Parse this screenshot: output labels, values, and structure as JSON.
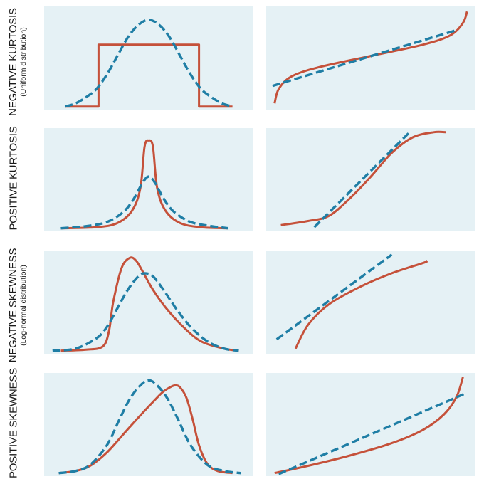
{
  "colors": {
    "panel_bg": "#e5f1f5",
    "sample": "#c5513a",
    "normal": "#1f7ea5",
    "text": "#1b1b1b"
  },
  "rows": [
    {
      "title": "NEGATIVE KURTOSIS",
      "subtitle": "(Uniform distribution)"
    },
    {
      "title": "POSITIVE KURTOSIS",
      "subtitle": ""
    },
    {
      "title": "NEGATIVE SKEWNESS",
      "subtitle": "(Log-normal distribution)"
    },
    {
      "title": "POSITIVE SKEWNESS",
      "subtitle": ""
    }
  ],
  "chart_data": [
    {
      "type": "line",
      "panel": "negative-kurtosis-density",
      "title": "",
      "xlabel": "",
      "ylabel": "",
      "grid": false,
      "xlim": [
        0,
        1
      ],
      "ylim": [
        0,
        1
      ],
      "series": [
        {
          "style": "solid",
          "color": "#c5513a",
          "x": [
            0.1,
            0.26,
            0.26,
            0.74,
            0.74,
            0.9
          ],
          "y": [
            0.03,
            0.03,
            0.63,
            0.63,
            0.03,
            0.03
          ]
        },
        {
          "style": "dashed",
          "color": "#1f7ea5",
          "x": [
            0.1,
            0.15,
            0.2,
            0.25,
            0.3,
            0.35,
            0.4,
            0.45,
            0.5,
            0.55,
            0.6,
            0.65,
            0.7,
            0.75,
            0.8,
            0.85,
            0.9
          ],
          "y": [
            0.03,
            0.06,
            0.12,
            0.2,
            0.34,
            0.52,
            0.7,
            0.82,
            0.87,
            0.82,
            0.7,
            0.52,
            0.34,
            0.2,
            0.12,
            0.06,
            0.03
          ]
        }
      ]
    },
    {
      "type": "line",
      "panel": "negative-kurtosis-qq",
      "title": "",
      "xlabel": "",
      "ylabel": "",
      "grid": false,
      "xlim": [
        0,
        1
      ],
      "ylim": [
        0,
        1
      ],
      "series": [
        {
          "style": "solid",
          "color": "#c5513a",
          "x": [
            0.04,
            0.06,
            0.12,
            0.25,
            0.5,
            0.75,
            0.88,
            0.94,
            0.96
          ],
          "y": [
            0.06,
            0.2,
            0.32,
            0.41,
            0.52,
            0.63,
            0.72,
            0.84,
            0.95
          ]
        },
        {
          "style": "dashed",
          "color": "#1f7ea5",
          "x": [
            0.03,
            0.91
          ],
          "y": [
            0.23,
            0.77
          ]
        }
      ]
    },
    {
      "type": "line",
      "panel": "positive-kurtosis-density",
      "title": "",
      "xlabel": "",
      "ylabel": "",
      "grid": false,
      "xlim": [
        0,
        1
      ],
      "ylim": [
        0,
        1
      ],
      "series": [
        {
          "style": "solid",
          "color": "#c5513a",
          "x": [
            0.08,
            0.25,
            0.35,
            0.42,
            0.46,
            0.48,
            0.5,
            0.52,
            0.54,
            0.58,
            0.65,
            0.75,
            0.88
          ],
          "y": [
            0.03,
            0.04,
            0.08,
            0.2,
            0.42,
            0.82,
            0.88,
            0.82,
            0.42,
            0.2,
            0.08,
            0.04,
            0.03
          ]
        },
        {
          "style": "dashed",
          "color": "#1f7ea5",
          "x": [
            0.08,
            0.2,
            0.3,
            0.38,
            0.43,
            0.47,
            0.5,
            0.53,
            0.57,
            0.62,
            0.7,
            0.8,
            0.88
          ],
          "y": [
            0.03,
            0.05,
            0.09,
            0.19,
            0.32,
            0.47,
            0.53,
            0.47,
            0.32,
            0.19,
            0.09,
            0.05,
            0.03
          ]
        }
      ]
    },
    {
      "type": "line",
      "panel": "positive-kurtosis-qq",
      "title": "",
      "xlabel": "",
      "ylabel": "",
      "grid": false,
      "xlim": [
        0,
        1
      ],
      "ylim": [
        0,
        1
      ],
      "series": [
        {
          "style": "solid",
          "color": "#c5513a",
          "x": [
            0.07,
            0.2,
            0.3,
            0.4,
            0.5,
            0.6,
            0.7,
            0.8,
            0.86
          ],
          "y": [
            0.06,
            0.1,
            0.15,
            0.32,
            0.53,
            0.76,
            0.91,
            0.96,
            0.96
          ]
        },
        {
          "style": "dashed",
          "color": "#1f7ea5",
          "x": [
            0.23,
            0.68
          ],
          "y": [
            0.04,
            0.95
          ]
        }
      ]
    },
    {
      "type": "line",
      "panel": "negative-skewness-density",
      "title": "",
      "xlabel": "",
      "ylabel": "",
      "grid": false,
      "xlim": [
        0,
        1
      ],
      "ylim": [
        0,
        1
      ],
      "series": [
        {
          "style": "solid",
          "color": "#c5513a",
          "x": [
            0.08,
            0.2,
            0.28,
            0.31,
            0.33,
            0.37,
            0.41,
            0.44,
            0.47,
            0.52,
            0.58,
            0.66,
            0.75,
            0.86,
            0.93
          ],
          "y": [
            0.03,
            0.04,
            0.07,
            0.22,
            0.5,
            0.83,
            0.93,
            0.9,
            0.8,
            0.62,
            0.45,
            0.27,
            0.12,
            0.05,
            0.03
          ]
        },
        {
          "style": "dashed",
          "color": "#1f7ea5",
          "x": [
            0.04,
            0.15,
            0.25,
            0.3,
            0.35,
            0.4,
            0.45,
            0.48,
            0.52,
            0.57,
            0.63,
            0.7,
            0.78,
            0.86,
            0.93
          ],
          "y": [
            0.03,
            0.05,
            0.15,
            0.26,
            0.44,
            0.62,
            0.75,
            0.78,
            0.75,
            0.62,
            0.44,
            0.26,
            0.12,
            0.05,
            0.03
          ]
        }
      ]
    },
    {
      "type": "line",
      "panel": "negative-skewness-qq",
      "title": "",
      "xlabel": "",
      "ylabel": "",
      "grid": false,
      "xlim": [
        0,
        1
      ],
      "ylim": [
        0,
        1
      ],
      "series": [
        {
          "style": "solid",
          "color": "#c5513a",
          "x": [
            0.14,
            0.2,
            0.3,
            0.45,
            0.6,
            0.75,
            0.77
          ],
          "y": [
            0.05,
            0.28,
            0.48,
            0.65,
            0.78,
            0.88,
            0.9
          ]
        },
        {
          "style": "dashed",
          "color": "#1f7ea5",
          "x": [
            0.05,
            0.6
          ],
          "y": [
            0.14,
            0.96
          ]
        }
      ]
    },
    {
      "type": "line",
      "panel": "positive-skewness-density",
      "title": "",
      "xlabel": "",
      "ylabel": "",
      "grid": false,
      "xlim": [
        0,
        1
      ],
      "ylim": [
        0,
        1
      ],
      "series": [
        {
          "style": "solid",
          "color": "#c5513a",
          "x": [
            0.07,
            0.15,
            0.22,
            0.3,
            0.38,
            0.46,
            0.53,
            0.57,
            0.61,
            0.63,
            0.65,
            0.68,
            0.71,
            0.74,
            0.78,
            0.83,
            0.9
          ],
          "y": [
            0.03,
            0.05,
            0.1,
            0.23,
            0.41,
            0.59,
            0.74,
            0.82,
            0.87,
            0.88,
            0.86,
            0.76,
            0.55,
            0.3,
            0.12,
            0.05,
            0.03
          ]
        },
        {
          "style": "dashed",
          "color": "#1f7ea5",
          "x": [
            0.07,
            0.15,
            0.22,
            0.3,
            0.36,
            0.41,
            0.46,
            0.5,
            0.54,
            0.59,
            0.64,
            0.7,
            0.78,
            0.86,
            0.94
          ],
          "y": [
            0.03,
            0.05,
            0.11,
            0.3,
            0.55,
            0.75,
            0.88,
            0.93,
            0.88,
            0.75,
            0.55,
            0.3,
            0.11,
            0.05,
            0.03
          ]
        }
      ]
    },
    {
      "type": "line",
      "panel": "positive-skewness-qq",
      "title": "",
      "xlabel": "",
      "ylabel": "",
      "grid": false,
      "xlim": [
        0,
        1
      ],
      "ylim": [
        0,
        1
      ],
      "series": [
        {
          "style": "solid",
          "color": "#c5513a",
          "x": [
            0.04,
            0.2,
            0.4,
            0.6,
            0.75,
            0.85,
            0.91,
            0.94
          ],
          "y": [
            0.03,
            0.1,
            0.2,
            0.32,
            0.45,
            0.6,
            0.77,
            0.96
          ]
        },
        {
          "style": "dashed",
          "color": "#1f7ea5",
          "x": [
            0.06,
            0.95
          ],
          "y": [
            0.02,
            0.8
          ]
        }
      ]
    }
  ]
}
